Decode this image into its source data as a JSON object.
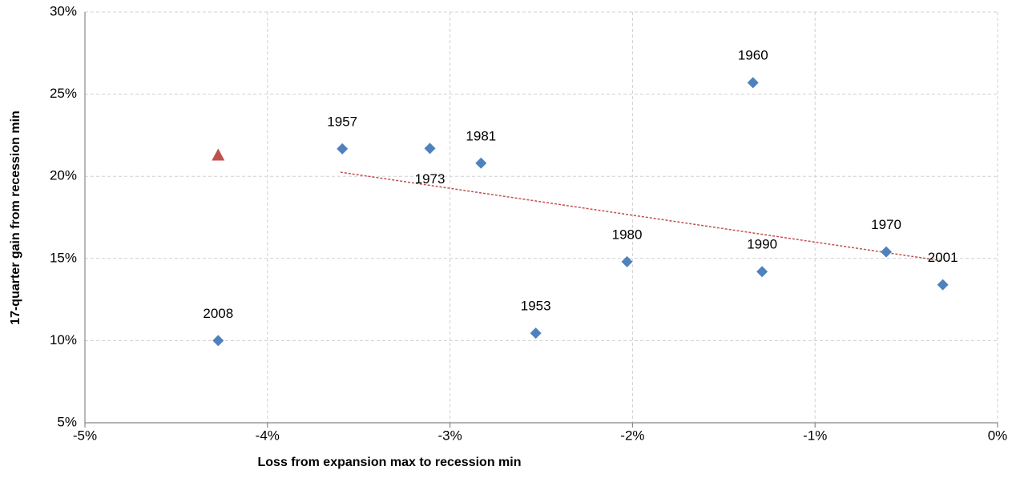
{
  "chart_data": {
    "type": "scatter",
    "x_label": "Loss from expansion max to recession min",
    "y_label": "17-quarter gain from recession min",
    "xlim": [
      -5,
      0
    ],
    "xticks": [
      {
        "value": -5,
        "label": "-5%"
      },
      {
        "value": -4,
        "label": "-4%"
      },
      {
        "value": -3,
        "label": "-3%"
      },
      {
        "value": -2,
        "label": "-2%"
      },
      {
        "value": -1,
        "label": "-1%"
      },
      {
        "value": 0,
        "label": "0%"
      }
    ],
    "ylim": [
      5,
      30
    ],
    "yticks": [
      {
        "value": 5,
        "label": "5%"
      },
      {
        "value": 10,
        "label": "10%"
      },
      {
        "value": 15,
        "label": "15%"
      },
      {
        "value": 20,
        "label": "20%"
      },
      {
        "value": 25,
        "label": "25%"
      },
      {
        "value": 30,
        "label": "30%"
      }
    ],
    "grid": true,
    "series": [
      {
        "color": "#4f81bd",
        "marker": "diamond",
        "labels": [
          "1957",
          "1973",
          "1981",
          "1960",
          "1980",
          "1990",
          "1970",
          "2001",
          "1953",
          "2008"
        ],
        "x": [
          -3.59,
          -3.11,
          -2.83,
          -1.34,
          -2.03,
          -1.29,
          -0.61,
          -0.3,
          -2.53,
          -4.27
        ],
        "values": [
          21.67,
          21.7,
          20.8,
          25.7,
          14.8,
          14.2,
          15.4,
          13.4,
          10.45,
          10.0
        ]
      },
      {
        "color": "#c0504d",
        "marker": "triangle",
        "x": [
          -4.27
        ],
        "values": [
          21.3
        ]
      }
    ],
    "trendline": {
      "color": "#c0504d",
      "x": [
        -3.6,
        -0.3
      ],
      "values": [
        20.25,
        14.85
      ]
    }
  }
}
